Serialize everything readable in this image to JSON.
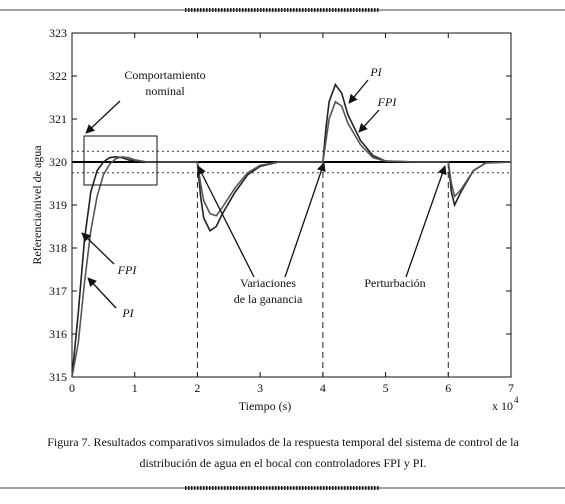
{
  "chart_data": {
    "type": "line",
    "y_label": "Referencia/nivel de agua",
    "x_label": "Tiempo (s)",
    "x_multiplier": "x 10",
    "x_multiplier_exponent": "4",
    "x": [
      0,
      0.1,
      0.2,
      0.3,
      0.4,
      0.5,
      0.6,
      0.7,
      0.8,
      0.9,
      1.0,
      1.2,
      1.5,
      2.0,
      2.05,
      2.1,
      2.2,
      2.3,
      2.4,
      2.6,
      2.8,
      3.0,
      3.3,
      3.6,
      4.0,
      4.05,
      4.1,
      4.2,
      4.3,
      4.4,
      4.6,
      4.8,
      5.0,
      5.5,
      6.0,
      6.05,
      6.1,
      6.2,
      6.4,
      6.6,
      7.0
    ],
    "series": [
      {
        "name": "PI",
        "color": "#222222",
        "values": [
          315,
          316.5,
          318.2,
          319.3,
          319.8,
          320.0,
          320.1,
          320.12,
          320.1,
          320.05,
          320.02,
          320,
          320,
          320,
          319.2,
          318.7,
          318.4,
          318.5,
          318.8,
          319.3,
          319.7,
          319.9,
          320,
          320,
          320,
          320.8,
          321.4,
          321.8,
          321.6,
          321.1,
          320.5,
          320.15,
          320.02,
          320,
          320,
          319.3,
          319.0,
          319.3,
          319.8,
          319.98,
          320
        ]
      },
      {
        "name": "FPI",
        "color": "#555555",
        "values": [
          315,
          315.8,
          317.2,
          318.4,
          319.2,
          319.7,
          319.95,
          320.08,
          320.12,
          320.1,
          320.05,
          320,
          320,
          320,
          319.5,
          319.1,
          318.8,
          318.75,
          318.95,
          319.4,
          319.75,
          319.92,
          320,
          320,
          320,
          320.5,
          321.0,
          321.4,
          321.3,
          320.9,
          320.4,
          320.1,
          320.02,
          320,
          320,
          319.5,
          319.2,
          319.35,
          319.8,
          319.98,
          320
        ]
      }
    ],
    "reference": 320,
    "tolerance_lines": [
      320.25,
      319.75
    ],
    "change_times": [
      2,
      4,
      6
    ],
    "xlim": [
      0,
      7
    ],
    "xticks": [
      0,
      1,
      2,
      3,
      4,
      5,
      6,
      7
    ],
    "ylim": [
      315,
      323
    ],
    "yticks": [
      315,
      316,
      317,
      318,
      319,
      320,
      321,
      322,
      323
    ],
    "annotations": [
      "Comportamiento",
      "nominal",
      "PI",
      "FPI",
      "FPI",
      "PI",
      "Variaciones",
      "de la ganancia",
      "Perturbación"
    ],
    "caption": [
      "Figura 7. Resultados comparativos simulados de la respuesta temporal del sistema de control de la",
      "distribución  de agua en el bocal con controladores FPI y PI."
    ]
  }
}
